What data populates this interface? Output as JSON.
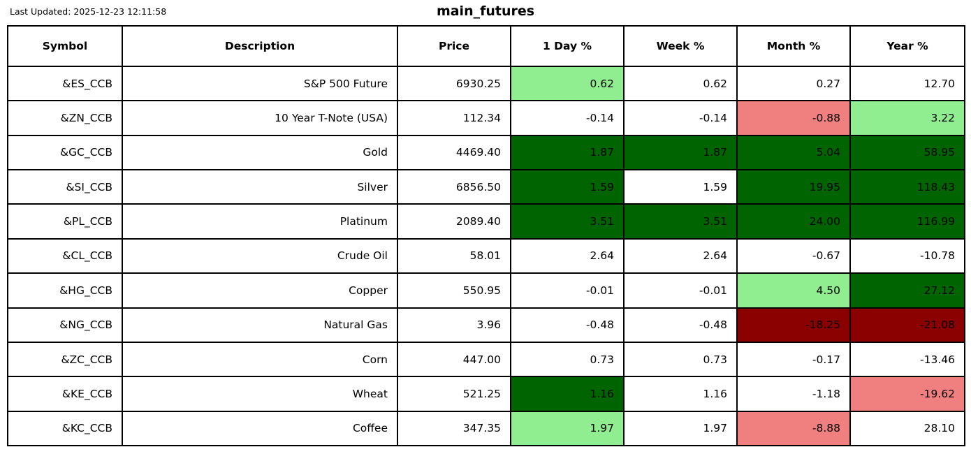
{
  "header": {
    "last_updated": "Last Updated: 2025-12-23 12:11:58",
    "title": "main_futures"
  },
  "colors": {
    "dark-green": "#006400",
    "light-green": "#90EE90",
    "light-red": "#F08080",
    "dark-red": "#8B0000",
    "white": "#ffffff"
  },
  "chart_data": {
    "type": "table",
    "title": "main_futures",
    "columns": [
      "Symbol",
      "Description",
      "Price",
      "1 Day %",
      "Week %",
      "Month %",
      "Year %"
    ],
    "rows": [
      {
        "symbol": "&ES_CCB",
        "description": "S&P 500 Future",
        "price": "6930.25",
        "pcts": [
          {
            "v": "0.62",
            "c": "light-green"
          },
          {
            "v": "0.62",
            "c": "white"
          },
          {
            "v": "0.27",
            "c": "white"
          },
          {
            "v": "12.70",
            "c": "white"
          }
        ]
      },
      {
        "symbol": "&ZN_CCB",
        "description": "10 Year T-Note (USA)",
        "price": "112.34",
        "pcts": [
          {
            "v": "-0.14",
            "c": "white"
          },
          {
            "v": "-0.14",
            "c": "white"
          },
          {
            "v": "-0.88",
            "c": "light-red"
          },
          {
            "v": "3.22",
            "c": "light-green"
          }
        ]
      },
      {
        "symbol": "&GC_CCB",
        "description": "Gold",
        "price": "4469.40",
        "pcts": [
          {
            "v": "1.87",
            "c": "dark-green"
          },
          {
            "v": "1.87",
            "c": "dark-green"
          },
          {
            "v": "5.04",
            "c": "dark-green"
          },
          {
            "v": "58.95",
            "c": "dark-green"
          }
        ]
      },
      {
        "symbol": "&SI_CCB",
        "description": "Silver",
        "price": "6856.50",
        "pcts": [
          {
            "v": "1.59",
            "c": "dark-green"
          },
          {
            "v": "1.59",
            "c": "white"
          },
          {
            "v": "19.95",
            "c": "dark-green"
          },
          {
            "v": "118.43",
            "c": "dark-green"
          }
        ]
      },
      {
        "symbol": "&PL_CCB",
        "description": "Platinum",
        "price": "2089.40",
        "pcts": [
          {
            "v": "3.51",
            "c": "dark-green"
          },
          {
            "v": "3.51",
            "c": "dark-green"
          },
          {
            "v": "24.00",
            "c": "dark-green"
          },
          {
            "v": "116.99",
            "c": "dark-green"
          }
        ]
      },
      {
        "symbol": "&CL_CCB",
        "description": "Crude Oil",
        "price": "58.01",
        "pcts": [
          {
            "v": "2.64",
            "c": "white"
          },
          {
            "v": "2.64",
            "c": "white"
          },
          {
            "v": "-0.67",
            "c": "white"
          },
          {
            "v": "-10.78",
            "c": "white"
          }
        ]
      },
      {
        "symbol": "&HG_CCB",
        "description": "Copper",
        "price": "550.95",
        "pcts": [
          {
            "v": "-0.01",
            "c": "white"
          },
          {
            "v": "-0.01",
            "c": "white"
          },
          {
            "v": "4.50",
            "c": "light-green"
          },
          {
            "v": "27.12",
            "c": "dark-green"
          }
        ]
      },
      {
        "symbol": "&NG_CCB",
        "description": "Natural Gas",
        "price": "3.96",
        "pcts": [
          {
            "v": "-0.48",
            "c": "white"
          },
          {
            "v": "-0.48",
            "c": "white"
          },
          {
            "v": "-18.25",
            "c": "dark-red"
          },
          {
            "v": "-21.08",
            "c": "dark-red"
          }
        ]
      },
      {
        "symbol": "&ZC_CCB",
        "description": "Corn",
        "price": "447.00",
        "pcts": [
          {
            "v": "0.73",
            "c": "white"
          },
          {
            "v": "0.73",
            "c": "white"
          },
          {
            "v": "-0.17",
            "c": "white"
          },
          {
            "v": "-13.46",
            "c": "white"
          }
        ]
      },
      {
        "symbol": "&KE_CCB",
        "description": "Wheat",
        "price": "521.25",
        "pcts": [
          {
            "v": "1.16",
            "c": "dark-green"
          },
          {
            "v": "1.16",
            "c": "white"
          },
          {
            "v": "-1.18",
            "c": "white"
          },
          {
            "v": "-19.62",
            "c": "light-red"
          }
        ]
      },
      {
        "symbol": "&KC_CCB",
        "description": "Coffee",
        "price": "347.35",
        "pcts": [
          {
            "v": "1.97",
            "c": "light-green"
          },
          {
            "v": "1.97",
            "c": "white"
          },
          {
            "v": "-8.88",
            "c": "light-red"
          },
          {
            "v": "28.10",
            "c": "white"
          }
        ]
      }
    ]
  }
}
